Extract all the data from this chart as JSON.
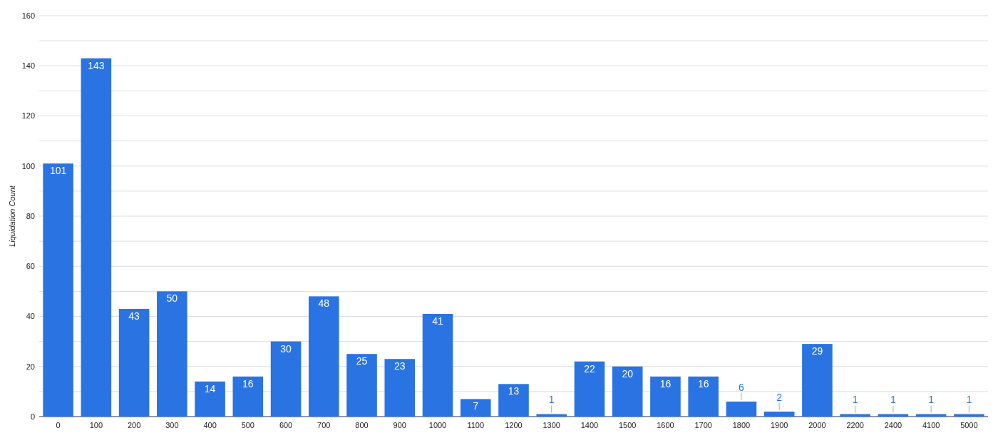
{
  "chart_data": {
    "type": "bar",
    "ylabel": "Liquidation Count",
    "categories": [
      "0",
      "100",
      "200",
      "300",
      "400",
      "500",
      "600",
      "700",
      "800",
      "900",
      "1000",
      "1100",
      "1200",
      "1300",
      "1400",
      "1500",
      "1600",
      "1700",
      "1800",
      "1900",
      "2000",
      "2200",
      "2400",
      "4100",
      "5000"
    ],
    "values": [
      101,
      143,
      43,
      50,
      14,
      16,
      30,
      48,
      25,
      23,
      41,
      7,
      13,
      1,
      22,
      20,
      16,
      16,
      6,
      2,
      29,
      1,
      1,
      1,
      1
    ],
    "color": "#2a73e3",
    "ylim": [
      0,
      160
    ],
    "yticks": [
      0,
      {
        "value": 10,
        "label": null
      },
      20,
      {
        "value": 30,
        "label": null
      },
      40,
      {
        "value": 50,
        "label": null
      },
      60,
      {
        "value": 70,
        "label": null
      },
      80,
      {
        "value": 90,
        "label": null
      },
      100,
      {
        "value": 110,
        "label": null
      },
      120,
      {
        "value": 130,
        "label": null
      },
      140,
      {
        "value": 150,
        "label": null
      },
      160
    ],
    "grid": true,
    "data_labels": true
  }
}
